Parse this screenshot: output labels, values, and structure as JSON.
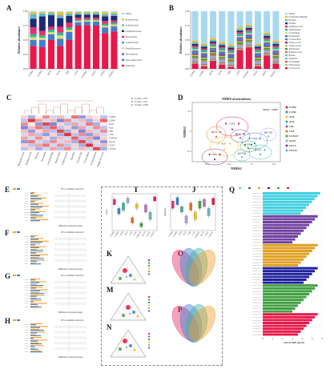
{
  "panel_labels": {
    "A": "A",
    "B": "B",
    "C": "C",
    "D": "D",
    "E": "E",
    "F": "F",
    "G": "G",
    "H": "H",
    "I": "I",
    "J": "J",
    "K": "K",
    "M": "M",
    "N": "N",
    "O": "O",
    "P": "P",
    "Q": "Q"
  },
  "groups": [
    "CON8",
    "CON6",
    "AG8",
    "AG6",
    "C8S",
    "CX6",
    "CONAT",
    "AG35",
    "CEST",
    "CEST2"
  ],
  "panelA": {
    "ylabel": "Relative abundance",
    "yticks": [
      "0.00",
      "0.25",
      "0.50",
      "0.75",
      "1.00"
    ],
    "legend": [
      "Others",
      "Proteobacteria",
      "Actinobacteria",
      "Campilobacterota",
      "Bacteroidota",
      "Cyanobacteria",
      "Desulfobacterota",
      "Spirochaetota",
      "Verrucomicrobiota",
      "Firmicutes"
    ],
    "colors": [
      "#a8d8f0",
      "#f0c020",
      "#5fb8c8",
      "#1e2a78",
      "#e8306a",
      "#2ab89a",
      "#d4e070",
      "#7060c0",
      "#3a80d0",
      "#e8184a"
    ]
  },
  "panelB": {
    "ylabel": "Relative abundance",
    "yticks": [
      "0.00",
      "0.25",
      "0.50",
      "0.75",
      "1.00"
    ],
    "legend": [
      "Others",
      "Escherichia-Shigella",
      "Bacillus",
      "Kurthia",
      "Staphylococcus",
      "Akkermansia",
      "Clostridium",
      "Romboutsia",
      "Lactobacillus",
      "Enterococcus",
      "Streptococcus",
      "Turicibacter",
      "Ruminococcus",
      "Blautia",
      "Weissella",
      "Clostridium",
      "Enterobacter",
      "Lactococcus"
    ],
    "colors": [
      "#a8d8f0",
      "#f0c020",
      "#5fb8c8",
      "#1e2a78",
      "#e8306a",
      "#2ab89a",
      "#d4e070",
      "#7060c0",
      "#3a80d0",
      "#9a2a80",
      "#c8c040",
      "#40a040",
      "#e87020",
      "#60c0e0",
      "#a0a0e0",
      "#d06060",
      "#80d080",
      "#e8184a"
    ]
  },
  "panelC": {
    "legend": [
      "P value < 0.05",
      "P value < 0.01",
      "P value < 0.001"
    ],
    "rows": [
      "CON8",
      "CON6",
      "AG8",
      "AG6",
      "C8S",
      "CX6",
      "CONAT",
      "AG35",
      "CEST",
      "CEST2"
    ],
    "cols": [
      "Ruminococcus",
      "Streptococcus",
      "Phocea",
      "Prevotella",
      "Lactobacillus",
      "Bacteroides",
      "Enterococcus",
      "Bacillus",
      "Escherichia",
      "Clostridium",
      "Acinetobacter",
      "Staphylococcus"
    ]
  },
  "panelD": {
    "title": "NMDS of microbiota",
    "stress": "Stress = 0.067",
    "xlabel": "NMDS1",
    "ylabel": "NMDS2",
    "legend": [
      "CON8",
      "CON6",
      "AG8",
      "AG6",
      "C8S",
      "CX6",
      "CONAT",
      "AG35",
      "CEST",
      "CEST2"
    ],
    "colors": [
      "#e8184a",
      "#3a80d0",
      "#f0c020",
      "#2ab89a",
      "#7060c0",
      "#e87020",
      "#40a040",
      "#a0a0e0",
      "#9a2a80",
      "#5fb8c8"
    ],
    "xticks": [
      "-0.4",
      "-0.2",
      "0",
      "0.2"
    ],
    "yticks": [
      "0.3",
      "0",
      "-0.3"
    ]
  },
  "panelE": {
    "header": "95% confidence intervals",
    "xlabel": "Difference between groups"
  },
  "panelI": {
    "ylabel": "Chao1"
  },
  "panelJ": {
    "ylabel": "Shannon"
  },
  "panelQ": {
    "xlabel": "LDA SCORE (log 10)",
    "xticks": [
      "0",
      "1",
      "2",
      "3",
      "4",
      "5",
      "6"
    ]
  }
}
